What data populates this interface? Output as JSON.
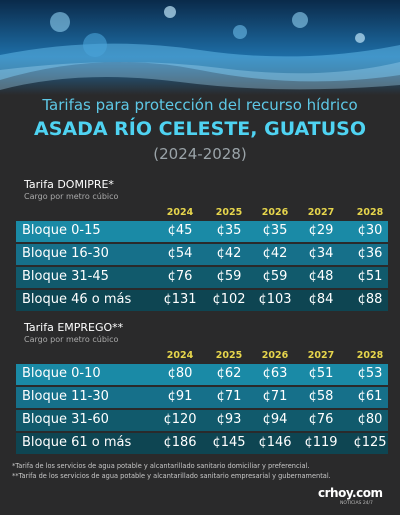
{
  "header": {
    "subtitle": "Tarifas para protección del recurso hídrico",
    "title": "ASADA RÍO CELESTE, GUATUSO",
    "period": "(2024-2028)"
  },
  "tables": [
    {
      "title": "Tarifa DOMIPRE*",
      "note": "Cargo por metro cúbico",
      "columns": [
        "2024",
        "2025",
        "2026",
        "2027",
        "2028"
      ],
      "rows": [
        {
          "label": "Bloque 0-15",
          "cells": [
            "¢45",
            "¢35",
            "¢35",
            "¢29",
            "¢30"
          ]
        },
        {
          "label": "Bloque 16-30",
          "cells": [
            "¢54",
            "¢42",
            "¢42",
            "¢34",
            "¢36"
          ]
        },
        {
          "label": "Bloque 31-45",
          "cells": [
            "¢76",
            "¢59",
            "¢59",
            "¢48",
            "¢51"
          ]
        },
        {
          "label": "Bloque 46 o más",
          "cells": [
            "¢131",
            "¢102",
            "¢103",
            "¢84",
            "¢88"
          ]
        }
      ]
    },
    {
      "title": "Tarifa EMPREGO**",
      "note": "Cargo por metro cúbico",
      "columns": [
        "2024",
        "2025",
        "2026",
        "2027",
        "2028"
      ],
      "rows": [
        {
          "label": "Bloque 0-10",
          "cells": [
            "¢80",
            "¢62",
            "¢63",
            "¢51",
            "¢53"
          ]
        },
        {
          "label": "Bloque 11-30",
          "cells": [
            "¢91",
            "¢71",
            "¢71",
            "¢58",
            "¢61"
          ]
        },
        {
          "label": "Bloque 31-60",
          "cells": [
            "¢120",
            "¢93",
            "¢94",
            "¢76",
            "¢80"
          ]
        },
        {
          "label": "Bloque 61 o más",
          "cells": [
            "¢186",
            "¢145",
            "¢146",
            "¢119",
            "¢125"
          ]
        }
      ]
    }
  ],
  "footnotes": [
    "*Tarifa de los servicios de agua potable y alcantarillado sanitario domiciliar y preferencial.",
    "**Tarifa de los servicios de agua potable y alcantarillado sanitario empresarial y gubernamental."
  ],
  "logo": {
    "name": "crhoy.com",
    "tagline": "NOTICIAS 24/7"
  }
}
